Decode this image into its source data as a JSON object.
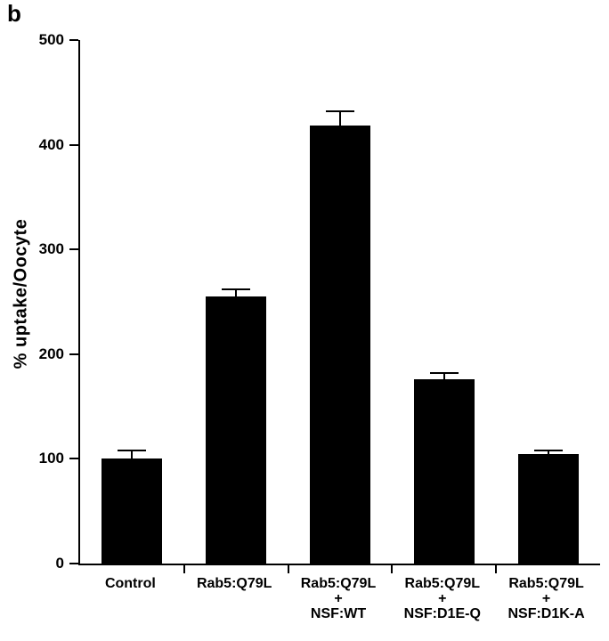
{
  "panel_label": "b",
  "chart_data": {
    "type": "bar",
    "title": "",
    "ylabel": "% uptake/Oocyte",
    "xlabel": "",
    "ylim": [
      0,
      500
    ],
    "yticks": [
      0,
      100,
      200,
      300,
      400,
      500
    ],
    "bar_color": "#000000",
    "grid": false,
    "legend": "none",
    "categories": [
      "Control",
      "Rab5:Q79L",
      "Rab5:Q79L + NSF:WT",
      "Rab5:Q79L + NSF:D1E-Q",
      "Rab5:Q79L + NSF:D1K-A"
    ],
    "category_lines": [
      [
        "Control"
      ],
      [
        "Rab5:Q79L"
      ],
      [
        "Rab5:Q79L",
        "+",
        "NSF:WT"
      ],
      [
        "Rab5:Q79L",
        "+",
        "NSF:D1E-Q"
      ],
      [
        "Rab5:Q79L",
        "+",
        "NSF:D1K-A"
      ]
    ],
    "values": [
      100,
      255,
      418,
      176,
      105
    ],
    "errors": [
      7,
      6,
      13,
      5,
      2
    ]
  }
}
